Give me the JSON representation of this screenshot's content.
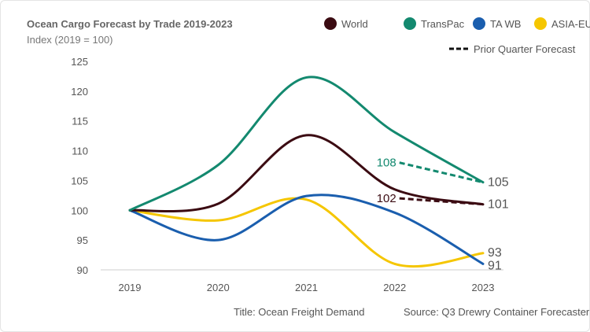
{
  "chart_data": {
    "type": "line",
    "title": "Ocean Cargo Forecast by Trade 2019-2023",
    "subtitle": "Index (2019 = 100)",
    "x": [
      "2019",
      "2020",
      "2021",
      "2022",
      "2023"
    ],
    "ylim": [
      90,
      125
    ],
    "yticks": [
      90,
      95,
      100,
      105,
      110,
      115,
      120,
      125
    ],
    "grid": false,
    "legend": "top-right",
    "series": [
      {
        "name": "World",
        "color": "#3b0b12",
        "values": [
          100,
          101.1,
          112.6,
          103.5,
          101
        ],
        "end_label": "101"
      },
      {
        "name": "TransPac",
        "color": "#13896f",
        "values": [
          100,
          107.6,
          122.3,
          113.1,
          104.7
        ],
        "end_label": "105"
      },
      {
        "name": "TA WB",
        "color": "#1a5eae",
        "values": [
          100,
          95,
          102.4,
          99.6,
          91
        ],
        "end_label": "91"
      },
      {
        "name": "ASIA-EU",
        "color": "#f5c600",
        "values": [
          100,
          98.3,
          101.8,
          91,
          92.8
        ],
        "end_label": "93"
      }
    ],
    "prior_forecast": {
      "name": "Prior Quarter Forecast",
      "lines": [
        {
          "series": "TransPac",
          "from": 108,
          "to": 104.7,
          "label": "108",
          "color": "#13896f"
        },
        {
          "series": "World",
          "from": 102,
          "to": 101,
          "label": "102",
          "color": "#3b0b12"
        }
      ]
    }
  },
  "footer": {
    "left": "Title: Ocean Freight Demand",
    "right": "Source: Q3 Drewry Container Forecaster"
  }
}
